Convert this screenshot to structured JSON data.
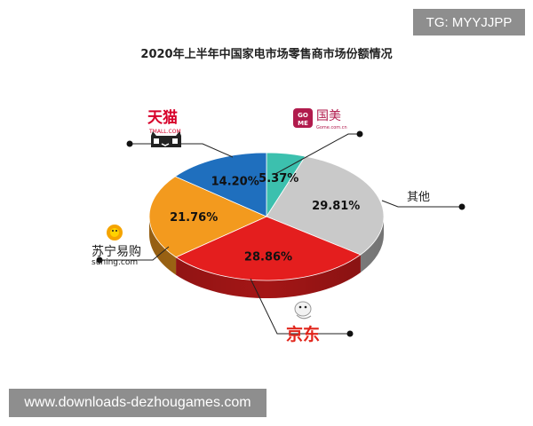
{
  "watermark_top": "TG: MYYJJPP",
  "watermark_bottom": "www.downloads-dezhougames.com",
  "chart_data": {
    "type": "pie",
    "title": "2020年上半年中国家电市场零售商市场份额情况",
    "slices": [
      {
        "label": "国美",
        "value": 5.37,
        "value_text": "5.37%",
        "color": "#3cc0ae",
        "logo_sub": "Gome.com.cn"
      },
      {
        "label": "其他",
        "value": 29.81,
        "value_text": "29.81%",
        "color": "#c9c9c9"
      },
      {
        "label": "京东",
        "value": 28.86,
        "value_text": "28.86%",
        "color": "#e41e1e"
      },
      {
        "label": "苏宁易购",
        "value": 21.76,
        "value_text": "21.76%",
        "color": "#f39a1e",
        "logo_sub": "suning.com"
      },
      {
        "label": "天猫",
        "value": 14.2,
        "value_text": "14.20%",
        "color": "#1f6fbe",
        "logo_sub": "TMALL.COM"
      }
    ]
  }
}
